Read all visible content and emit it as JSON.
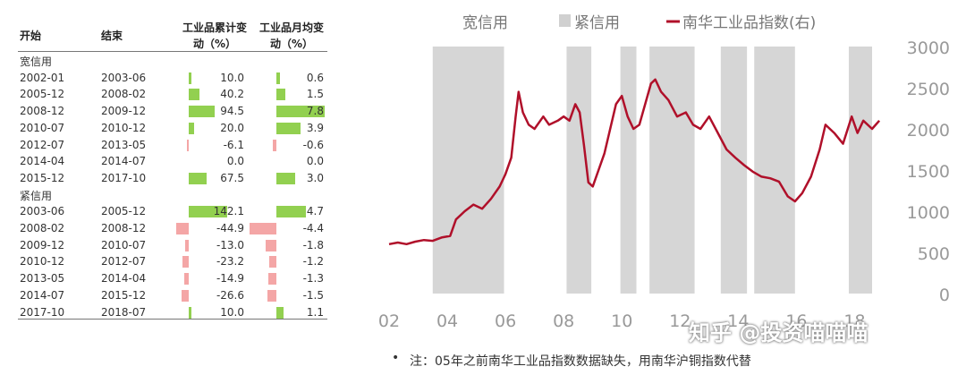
{
  "table": {
    "headers": {
      "start": "开始",
      "end": "结束",
      "cumulative_line1": "工业品累计变",
      "cumulative_line2": "动（%）",
      "monthly_line1": "工业品月均变",
      "monthly_line2": "动（%）"
    },
    "bar_colors": {
      "positive": "#92d050",
      "negative": "#f4a6a6"
    },
    "groups": [
      {
        "label": "宽信用",
        "rows": [
          {
            "start": "2002-01",
            "end": "2003-06",
            "cumulative": "10.0",
            "monthly": "0.6"
          },
          {
            "start": "2005-12",
            "end": "2008-02",
            "cumulative": "40.2",
            "monthly": "1.5"
          },
          {
            "start": "2008-12",
            "end": "2009-12",
            "cumulative": "94.5",
            "monthly": "7.8"
          },
          {
            "start": "2010-07",
            "end": "2010-12",
            "cumulative": "20.0",
            "monthly": "3.9"
          },
          {
            "start": "2012-07",
            "end": "2013-05",
            "cumulative": "-6.1",
            "monthly": "-0.6"
          },
          {
            "start": "2014-04",
            "end": "2014-07",
            "cumulative": "0.0",
            "monthly": "0.0"
          },
          {
            "start": "2015-12",
            "end": "2017-10",
            "cumulative": "67.5",
            "monthly": "3.0"
          }
        ]
      },
      {
        "label": "紧信用",
        "rows": [
          {
            "start": "2003-06",
            "end": "2005-12",
            "cumulative": "142.1",
            "monthly": "4.7"
          },
          {
            "start": "2008-02",
            "end": "2008-12",
            "cumulative": "-44.9",
            "monthly": "-4.4"
          },
          {
            "start": "2009-12",
            "end": "2010-07",
            "cumulative": "-13.0",
            "monthly": "-1.8"
          },
          {
            "start": "2010-12",
            "end": "2012-07",
            "cumulative": "-23.2",
            "monthly": "-1.2"
          },
          {
            "start": "2013-05",
            "end": "2014-04",
            "cumulative": "-14.9",
            "monthly": "-1.3"
          },
          {
            "start": "2014-07",
            "end": "2015-12",
            "cumulative": "-26.6",
            "monthly": "-1.5"
          },
          {
            "start": "2017-10",
            "end": "2018-07",
            "cumulative": "10.0",
            "monthly": "1.1"
          }
        ]
      }
    ]
  },
  "chart_data": {
    "type": "line",
    "legend": {
      "loose": "宽信用",
      "tight": "紧信用",
      "index": "南华工业品指数(右)"
    },
    "colors": {
      "line": "#b0102a",
      "shade": "#d6d6d6"
    },
    "x_ticks": [
      "02",
      "04",
      "06",
      "08",
      "10",
      "12",
      "14",
      "16",
      "18"
    ],
    "xlim": [
      2002,
      2019
    ],
    "y_right_ticks": [
      "0",
      "500",
      "1000",
      "1500",
      "2000",
      "2500",
      "3000"
    ],
    "ylim": [
      0,
      3000
    ],
    "tight_periods": [
      [
        2003.5,
        2005.95
      ],
      [
        2008.1,
        2008.95
      ],
      [
        2009.95,
        2010.5
      ],
      [
        2010.95,
        2012.5
      ],
      [
        2013.4,
        2014.3
      ],
      [
        2014.55,
        2015.95
      ],
      [
        2017.8,
        2018.6
      ]
    ],
    "series": [
      {
        "name": "南华工业品指数(右)",
        "points": [
          [
            2002.0,
            600
          ],
          [
            2002.3,
            620
          ],
          [
            2002.6,
            600
          ],
          [
            2002.9,
            630
          ],
          [
            2003.2,
            650
          ],
          [
            2003.5,
            640
          ],
          [
            2003.8,
            680
          ],
          [
            2004.1,
            700
          ],
          [
            2004.3,
            900
          ],
          [
            2004.6,
            1000
          ],
          [
            2004.9,
            1080
          ],
          [
            2005.2,
            1030
          ],
          [
            2005.5,
            1150
          ],
          [
            2005.8,
            1300
          ],
          [
            2006.0,
            1450
          ],
          [
            2006.2,
            1650
          ],
          [
            2006.35,
            2150
          ],
          [
            2006.45,
            2450
          ],
          [
            2006.6,
            2200
          ],
          [
            2006.8,
            2050
          ],
          [
            2007.0,
            2000
          ],
          [
            2007.3,
            2150
          ],
          [
            2007.5,
            2050
          ],
          [
            2007.8,
            2100
          ],
          [
            2008.0,
            2150
          ],
          [
            2008.2,
            2100
          ],
          [
            2008.4,
            2300
          ],
          [
            2008.55,
            2200
          ],
          [
            2008.7,
            1800
          ],
          [
            2008.85,
            1350
          ],
          [
            2009.0,
            1300
          ],
          [
            2009.2,
            1500
          ],
          [
            2009.4,
            1700
          ],
          [
            2009.6,
            2000
          ],
          [
            2009.8,
            2300
          ],
          [
            2010.0,
            2400
          ],
          [
            2010.2,
            2150
          ],
          [
            2010.4,
            2000
          ],
          [
            2010.6,
            2050
          ],
          [
            2010.8,
            2300
          ],
          [
            2011.0,
            2550
          ],
          [
            2011.15,
            2600
          ],
          [
            2011.35,
            2450
          ],
          [
            2011.6,
            2350
          ],
          [
            2011.9,
            2150
          ],
          [
            2012.2,
            2200
          ],
          [
            2012.45,
            2050
          ],
          [
            2012.7,
            2000
          ],
          [
            2013.0,
            2150
          ],
          [
            2013.3,
            1950
          ],
          [
            2013.6,
            1750
          ],
          [
            2013.9,
            1650
          ],
          [
            2014.2,
            1560
          ],
          [
            2014.5,
            1480
          ],
          [
            2014.8,
            1420
          ],
          [
            2015.1,
            1400
          ],
          [
            2015.4,
            1360
          ],
          [
            2015.7,
            1180
          ],
          [
            2015.95,
            1120
          ],
          [
            2016.2,
            1220
          ],
          [
            2016.5,
            1420
          ],
          [
            2016.8,
            1750
          ],
          [
            2017.0,
            2050
          ],
          [
            2017.3,
            1950
          ],
          [
            2017.6,
            1820
          ],
          [
            2017.9,
            2150
          ],
          [
            2018.1,
            1950
          ],
          [
            2018.3,
            2100
          ],
          [
            2018.6,
            2000
          ],
          [
            2018.85,
            2100
          ]
        ]
      }
    ]
  },
  "note": "注：05年之前南华工业品指数数据缺失，用南华沪铜指数代替",
  "watermark": "知乎 @投资喵喵喵"
}
